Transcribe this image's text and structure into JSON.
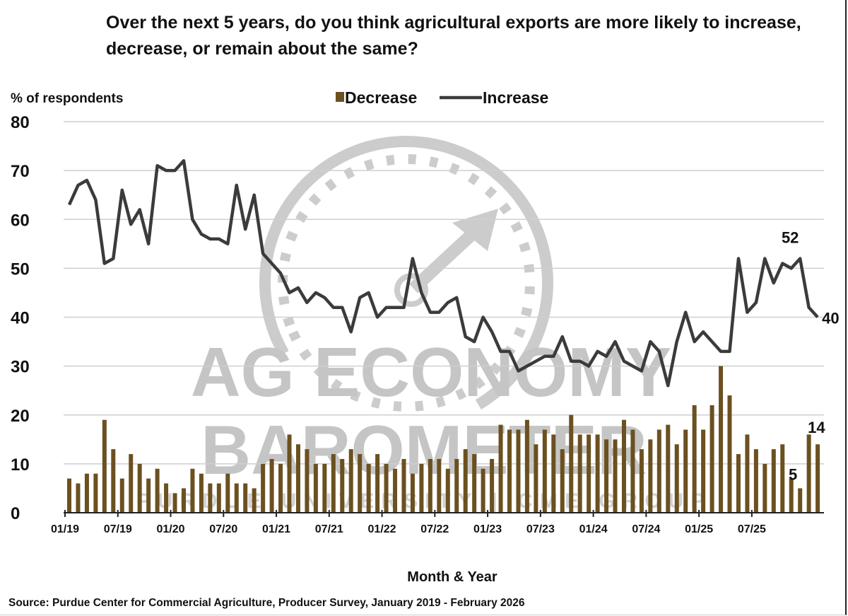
{
  "chart_data": {
    "type": "bar+line",
    "title": "Over the next 5 years, do you think agricultural exports are more likely to increase, decrease, or remain about the same?",
    "ylabel": "% of respondents",
    "xlabel": "Month & Year",
    "ylim": [
      0,
      80
    ],
    "yticks": [
      0,
      10,
      20,
      30,
      40,
      50,
      60,
      70,
      80
    ],
    "grid": true,
    "legend_placement": "top-center",
    "xtick_labels": [
      "01/19",
      "07/19",
      "01/20",
      "07/20",
      "01/21",
      "07/21",
      "01/22",
      "07/22",
      "01/23",
      "07/23",
      "01/24",
      "07/24",
      "01/25",
      "07/25"
    ],
    "x_start": "01/19",
    "x_end": "02/26",
    "series": [
      {
        "name": "Decrease",
        "type": "bar",
        "color": "#6b5020",
        "values": [
          7,
          6,
          8,
          8,
          19,
          13,
          7,
          12,
          10,
          7,
          9,
          6,
          4,
          5,
          9,
          8,
          6,
          6,
          8,
          6,
          6,
          5,
          10,
          11,
          10,
          16,
          14,
          13,
          10,
          10,
          12,
          11,
          13,
          12,
          10,
          12,
          10,
          9,
          11,
          8,
          10,
          11,
          11,
          9,
          11,
          13,
          12,
          9,
          11,
          18,
          17,
          17,
          19,
          14,
          17,
          16,
          13,
          20,
          16,
          16,
          16,
          15,
          15,
          19,
          17,
          13,
          15,
          17,
          18,
          14,
          17,
          22,
          17,
          22,
          30,
          24,
          12,
          16,
          13,
          10,
          13,
          14,
          7,
          5,
          16,
          14
        ]
      },
      {
        "name": "Increase",
        "type": "line",
        "color": "#3d3b3a",
        "values": [
          63,
          67,
          68,
          64,
          51,
          52,
          66,
          59,
          62,
          55,
          71,
          70,
          70,
          72,
          60,
          57,
          56,
          56,
          55,
          67,
          58,
          65,
          53,
          51,
          49,
          45,
          46,
          43,
          45,
          44,
          42,
          42,
          37,
          44,
          45,
          40,
          42,
          42,
          42,
          52,
          45,
          41,
          41,
          43,
          44,
          36,
          35,
          40,
          37,
          33,
          33,
          29,
          30,
          31,
          32,
          32,
          36,
          31,
          31,
          30,
          33,
          32,
          35,
          31,
          30,
          29,
          35,
          33,
          26,
          35,
          41,
          35,
          37,
          35,
          33,
          33,
          52,
          41,
          43,
          52,
          47,
          51,
          50,
          52,
          42,
          40
        ]
      }
    ],
    "data_labels": [
      {
        "series": "Increase",
        "month": "12/25",
        "text": "52"
      },
      {
        "series": "Increase",
        "month": "02/26",
        "text": "40"
      },
      {
        "series": "Decrease",
        "month": "12/25",
        "text": "5"
      },
      {
        "series": "Decrease",
        "month": "02/26",
        "text": "14"
      }
    ],
    "source": "Source: Purdue Center for Commercial Agriculture, Producer Survey, January 2019 - February 2026"
  },
  "watermark": {
    "line1": "AG ECONOMY",
    "line2": "BAROMETER",
    "line3": "PURDUE UNIVERSITY | CME GROUP"
  }
}
